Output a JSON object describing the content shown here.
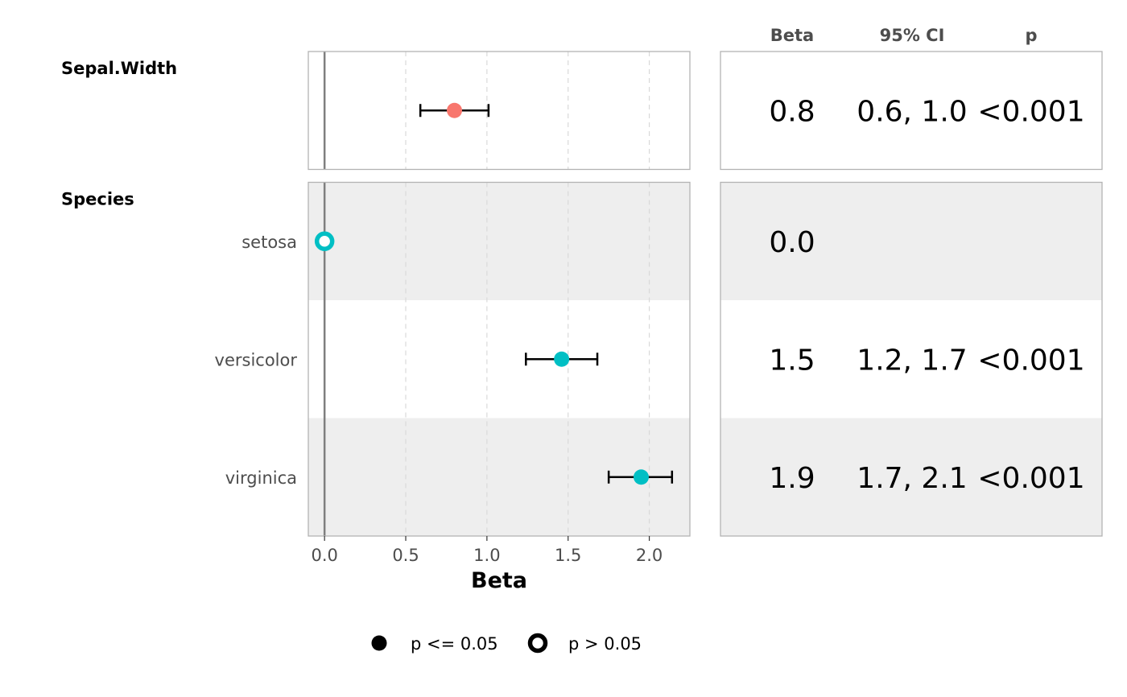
{
  "chart_data": {
    "type": "forest",
    "xlabel": "Beta",
    "xlim": [
      -0.1,
      2.25
    ],
    "xticks": [
      0.0,
      0.5,
      1.0,
      1.5,
      2.0
    ],
    "xtick_labels": [
      "0.0",
      "0.5",
      "1.0",
      "1.5",
      "2.0"
    ],
    "reference_line": 0,
    "grid": "vertical dashed",
    "table_headers": [
      "Beta",
      "95% CI",
      "p"
    ],
    "groups": [
      {
        "label": "Sepal.Width",
        "rows": [
          {
            "label": "",
            "beta": 0.8,
            "ci_low": 0.59,
            "ci_high": 1.01,
            "beta_text": "0.8",
            "ci_text": "0.6, 1.0",
            "p_text": "<0.001",
            "significant": true,
            "color": "#F8766D"
          }
        ]
      },
      {
        "label": "Species",
        "rows": [
          {
            "label": "setosa",
            "beta": 0.0,
            "ci_low": null,
            "ci_high": null,
            "beta_text": "0.0",
            "ci_text": "",
            "p_text": "",
            "significant": false,
            "color": "#00BFC4"
          },
          {
            "label": "versicolor",
            "beta": 1.46,
            "ci_low": 1.24,
            "ci_high": 1.68,
            "beta_text": "1.5",
            "ci_text": "1.2, 1.7",
            "p_text": "<0.001",
            "significant": true,
            "color": "#00BFC4"
          },
          {
            "label": "virginica",
            "beta": 1.95,
            "ci_low": 1.75,
            "ci_high": 2.14,
            "beta_text": "1.9",
            "ci_text": "1.7, 2.1",
            "p_text": "<0.001",
            "significant": true,
            "color": "#00BFC4"
          }
        ]
      }
    ],
    "legend": {
      "placement": "bottom",
      "items": [
        {
          "label": "p <= 0.05",
          "shape": "filled-circle"
        },
        {
          "label": "p > 0.05",
          "shape": "hollow-circle"
        }
      ]
    }
  }
}
